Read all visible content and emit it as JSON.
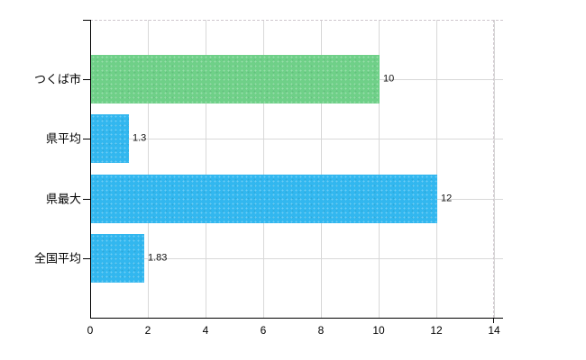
{
  "chart_data": {
    "type": "bar",
    "orientation": "horizontal",
    "title": "",
    "xlabel": "",
    "ylabel": "",
    "categories": [
      "つくば市",
      "県平均",
      "県最大",
      "全国平均"
    ],
    "values": [
      10,
      1.3,
      12,
      1.83
    ],
    "value_labels": [
      "10",
      "1.3",
      "12",
      "1.83"
    ],
    "bar_colors": [
      "#6fd088",
      "#32b7ef",
      "#32b7ef",
      "#32b7ef"
    ],
    "xlim": [
      0,
      14
    ],
    "x_ticks": [
      0,
      2,
      4,
      6,
      8,
      10,
      12,
      14
    ],
    "x_tick_labels": [
      "0",
      "2",
      "4",
      "6",
      "8",
      "10",
      "12",
      "14"
    ],
    "grid": true,
    "legend": false
  },
  "colors": {
    "background": "#ffffff",
    "grid": "#d8d8d8",
    "axis": "#000000",
    "dashed_border": "#cfc6cd",
    "text": "#000000",
    "value_text": "#111111"
  }
}
